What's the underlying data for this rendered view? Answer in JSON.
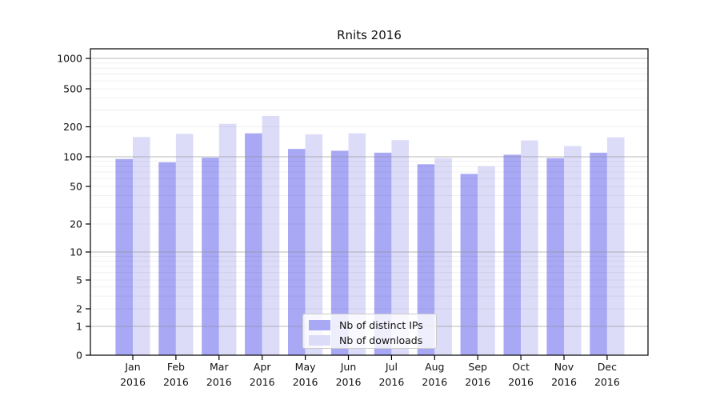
{
  "window": {
    "background": "#ffffff"
  },
  "chart_data": {
    "type": "bar",
    "title": "Rnits 2016",
    "categories": [
      "Jan",
      "Feb",
      "Mar",
      "Apr",
      "May",
      "Jun",
      "Jul",
      "Aug",
      "Sep",
      "Oct",
      "Nov",
      "Dec"
    ],
    "x_year_label": "2016",
    "series": [
      {
        "name": "Nb of distinct IPs",
        "color": "#a8a8f5",
        "values": [
          95,
          88,
          98,
          172,
          120,
          115,
          110,
          84,
          67,
          105,
          97,
          110
        ]
      },
      {
        "name": "Nb of downloads",
        "color": "#dcdcf8",
        "values": [
          158,
          170,
          215,
          260,
          168,
          172,
          147,
          97,
          80,
          146,
          128,
          157
        ]
      }
    ],
    "y_scale": "symlog",
    "y_ticks": [
      0,
      1,
      2,
      5,
      10,
      20,
      50,
      100,
      200,
      500,
      1000
    ],
    "ylim": [
      0,
      1250
    ],
    "xlabel": "",
    "ylabel": "",
    "grid": true,
    "legend_position": "lower-center",
    "colors": {
      "major_grid": "#8c8c8c",
      "minor_grid": "#000000",
      "axis": "#000000",
      "text": "#111111"
    }
  }
}
